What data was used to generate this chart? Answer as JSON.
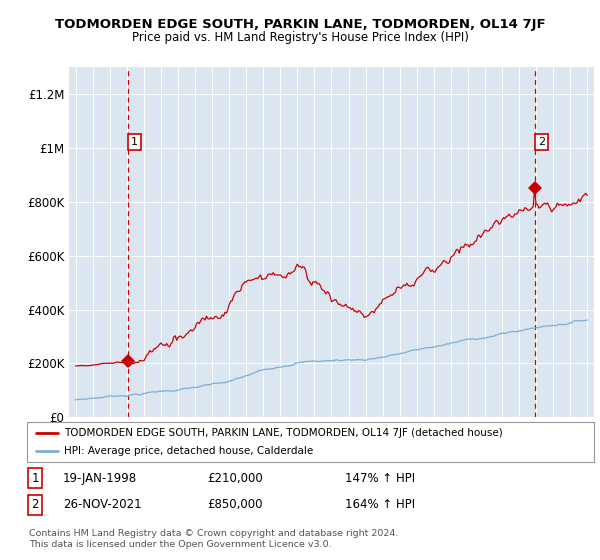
{
  "title": "TODMORDEN EDGE SOUTH, PARKIN LANE, TODMORDEN, OL14 7JF",
  "subtitle": "Price paid vs. HM Land Registry's House Price Index (HPI)",
  "ylim": [
    0,
    1300000
  ],
  "yticks": [
    0,
    200000,
    400000,
    600000,
    800000,
    1000000,
    1200000
  ],
  "ytick_labels": [
    "£0",
    "£200K",
    "£400K",
    "£600K",
    "£800K",
    "£1M",
    "£1.2M"
  ],
  "sale1_date": 1998.05,
  "sale1_price": 210000,
  "sale1_label": "1",
  "sale2_date": 2021.92,
  "sale2_price": 850000,
  "sale2_label": "2",
  "red_line_color": "#cc0000",
  "blue_line_color": "#7bafd4",
  "background_color": "#dce6f1",
  "legend_line1": "TODMORDEN EDGE SOUTH, PARKIN LANE, TODMORDEN, OL14 7JF (detached house)",
  "legend_line2": "HPI: Average price, detached house, Calderdale",
  "note1_num": "1",
  "note1_date": "19-JAN-1998",
  "note1_price": "£210,000",
  "note1_hpi": "147% ↑ HPI",
  "note2_num": "2",
  "note2_date": "26-NOV-2021",
  "note2_price": "£850,000",
  "note2_hpi": "164% ↑ HPI",
  "copyright": "Contains HM Land Registry data © Crown copyright and database right 2024.\nThis data is licensed under the Open Government Licence v3.0."
}
